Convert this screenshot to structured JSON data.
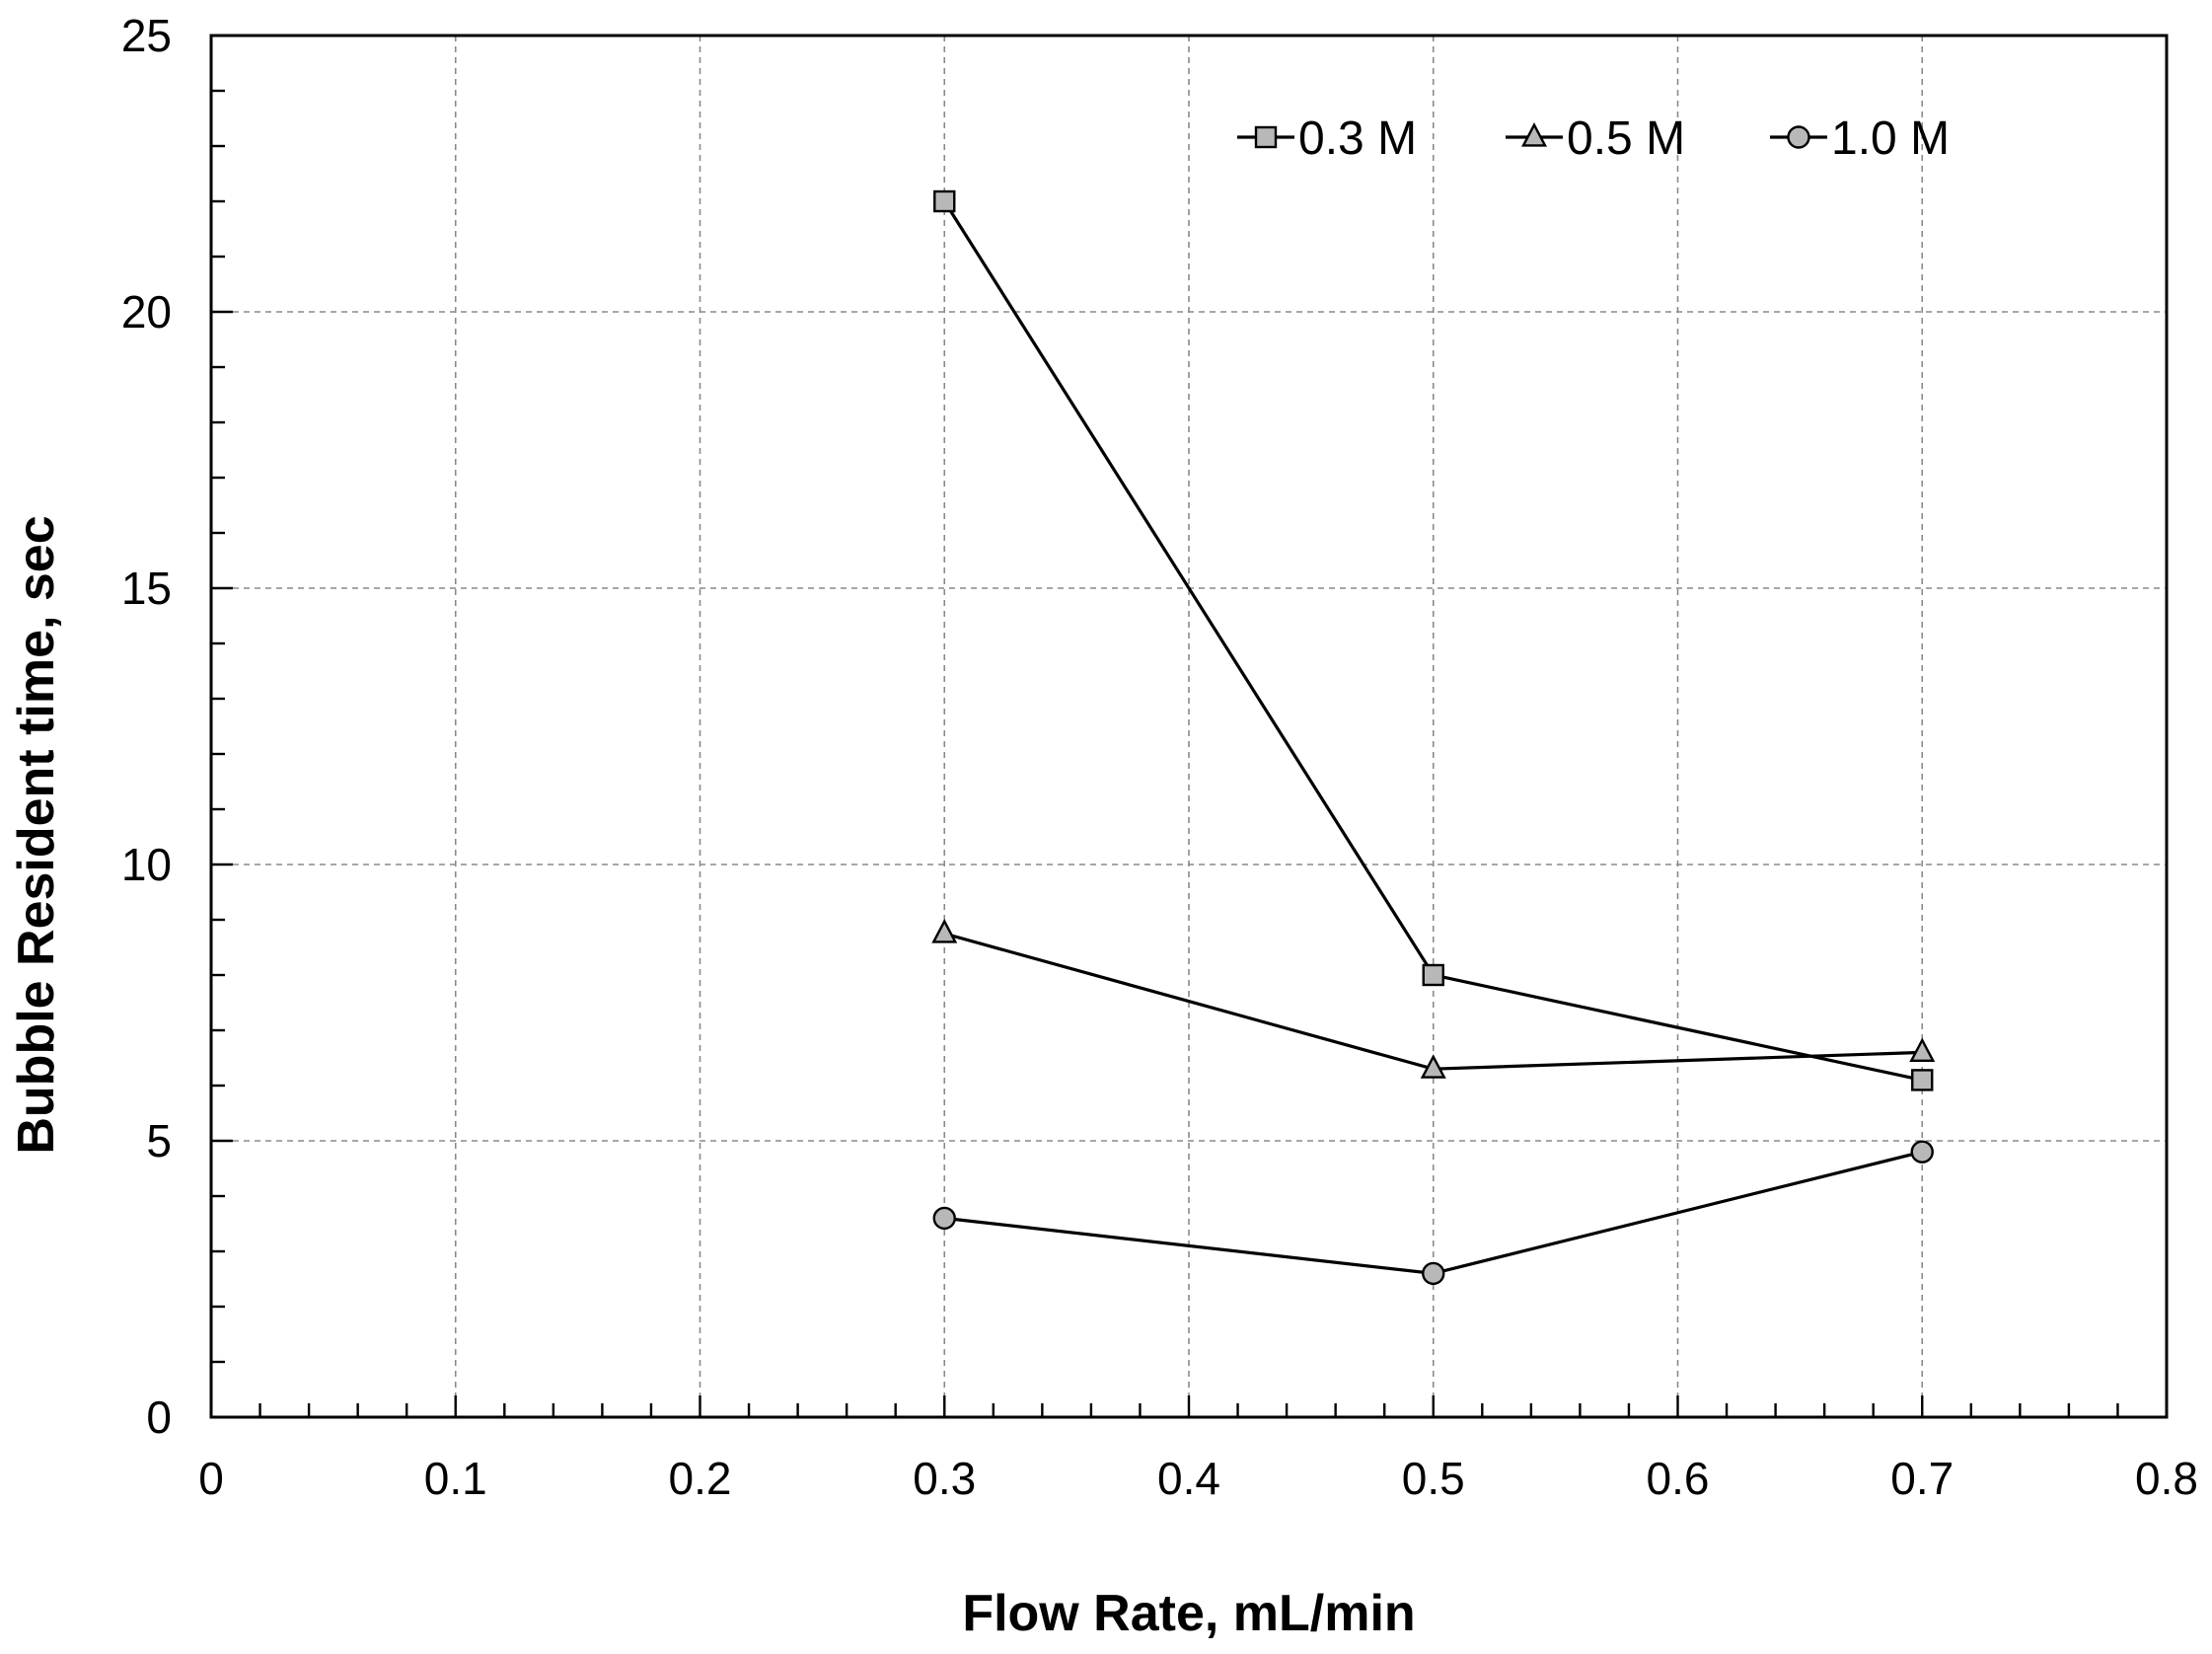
{
  "chart_data": {
    "type": "line",
    "title": "",
    "xlabel": "Flow Rate, mL/min",
    "ylabel": "Bubble Resident time, sec",
    "xlim": [
      0,
      0.8
    ],
    "ylim": [
      0,
      25
    ],
    "x_ticks": [
      "0",
      "0.1",
      "0.2",
      "0.3",
      "0.4",
      "0.5",
      "0.6",
      "0.7",
      "0.8"
    ],
    "y_ticks": [
      "0",
      "5",
      "10",
      "15",
      "20",
      "25"
    ],
    "grid": true,
    "legend_position": "top-right",
    "x": [
      0.3,
      0.5,
      0.7
    ],
    "series": [
      {
        "name": "0.3 M",
        "marker": "square",
        "values": [
          22.0,
          8.0,
          6.1
        ]
      },
      {
        "name": "0.5 M",
        "marker": "triangle",
        "values": [
          8.75,
          6.3,
          6.6
        ]
      },
      {
        "name": "1.0 M",
        "marker": "circle",
        "values": [
          3.6,
          2.6,
          4.8
        ]
      }
    ],
    "colors": {
      "line": "#000000",
      "marker_fill": "#b8b8b8",
      "grid": "#8a8a8a"
    }
  }
}
